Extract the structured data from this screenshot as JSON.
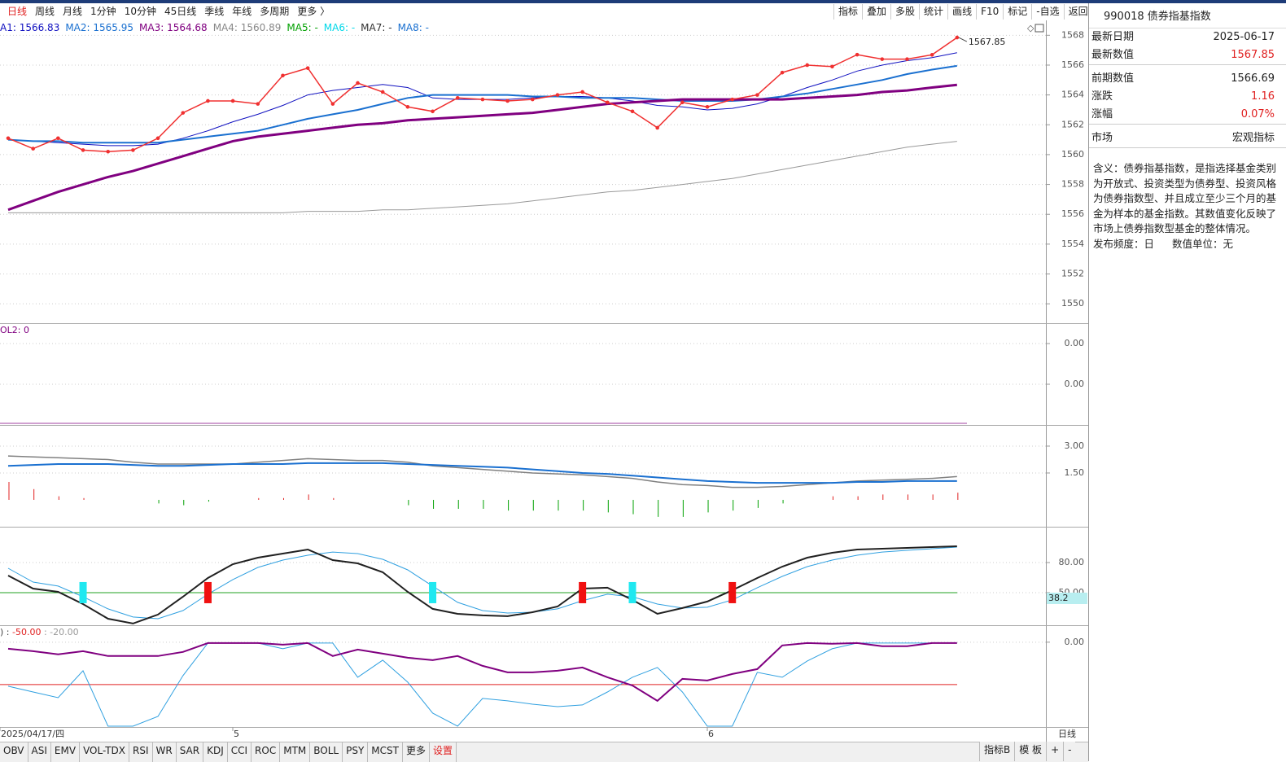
{
  "toolbar": {
    "periods": [
      "日线",
      "周线",
      "月线",
      "1分钟",
      "10分钟",
      "45日线",
      "季线",
      "年线",
      "多周期",
      "更多 〉"
    ],
    "tools": [
      "指标",
      "叠加",
      "多股",
      "统计",
      "画线",
      "F10",
      "标记",
      "-自选",
      "返回"
    ]
  },
  "main": {
    "legend": [
      {
        "text": "A1: 1566.83",
        "color": "#1010c0"
      },
      {
        "text": "MA2: 1565.95",
        "color": "#1a70d0"
      },
      {
        "text": "MA3: 1564.68",
        "color": "#800080"
      },
      {
        "text": "MA4: 1560.89",
        "color": "#888888"
      },
      {
        "text": "MA5: -",
        "color": "#00a000"
      },
      {
        "text": "MA6: -",
        "color": "#00d8e8"
      },
      {
        "text": "MA7: -",
        "color": "#333333"
      },
      {
        "text": "MA8: -",
        "color": "#1a70d0"
      }
    ],
    "ylim": [
      1548.7,
      1569.0
    ],
    "yticks": [
      1550,
      1552,
      1554,
      1556,
      1558,
      1560,
      1562,
      1564,
      1566,
      1568
    ],
    "last_label": "1567.85",
    "close": {
      "color": "#f03030",
      "values": [
        1561.1,
        1560.4,
        1561.1,
        1560.3,
        1560.2,
        1560.3,
        1561.1,
        1562.8,
        1563.6,
        1563.6,
        1563.4,
        1565.3,
        1565.8,
        1563.4,
        1564.8,
        1564.2,
        1563.2,
        1562.9,
        1563.8,
        1563.7,
        1563.6,
        1563.7,
        1564.0,
        1564.2,
        1563.5,
        1562.9,
        1561.8,
        1563.5,
        1563.2,
        1563.7,
        1564.0,
        1565.5,
        1566.0,
        1565.9,
        1566.7,
        1566.4,
        1566.4,
        1566.69,
        1567.85
      ]
    },
    "ma": [
      {
        "color": "#1010c0",
        "width": 1,
        "values": [
          1561.0,
          1560.9,
          1560.8,
          1560.7,
          1560.6,
          1560.6,
          1560.7,
          1561.1,
          1561.6,
          1562.2,
          1562.7,
          1563.3,
          1564.0,
          1564.3,
          1564.5,
          1564.7,
          1564.5,
          1563.8,
          1563.7,
          1563.7,
          1563.7,
          1563.8,
          1563.9,
          1563.9,
          1563.8,
          1563.6,
          1563.3,
          1563.2,
          1563.0,
          1563.1,
          1563.4,
          1563.9,
          1564.5,
          1565.0,
          1565.6,
          1566.0,
          1566.3,
          1566.5,
          1566.83
        ]
      },
      {
        "color": "#1a70d0",
        "width": 2,
        "values": [
          1561.0,
          1560.9,
          1560.9,
          1560.8,
          1560.8,
          1560.8,
          1560.8,
          1561.0,
          1561.2,
          1561.4,
          1561.6,
          1562.0,
          1562.4,
          1562.7,
          1563.0,
          1563.4,
          1563.8,
          1564.0,
          1564.0,
          1564.0,
          1564.0,
          1563.9,
          1563.9,
          1563.8,
          1563.8,
          1563.8,
          1563.7,
          1563.6,
          1563.6,
          1563.6,
          1563.7,
          1563.9,
          1564.1,
          1564.4,
          1564.7,
          1565.0,
          1565.4,
          1565.7,
          1565.95
        ]
      },
      {
        "color": "#800080",
        "width": 3,
        "values": [
          1556.3,
          1556.9,
          1557.5,
          1558.0,
          1558.5,
          1558.9,
          1559.4,
          1559.9,
          1560.4,
          1560.9,
          1561.2,
          1561.4,
          1561.6,
          1561.8,
          1562.0,
          1562.1,
          1562.3,
          1562.4,
          1562.5,
          1562.6,
          1562.7,
          1562.8,
          1563.0,
          1563.2,
          1563.4,
          1563.5,
          1563.6,
          1563.7,
          1563.7,
          1563.7,
          1563.7,
          1563.7,
          1563.8,
          1563.9,
          1564.0,
          1564.2,
          1564.3,
          1564.5,
          1564.68
        ]
      },
      {
        "color": "#999999",
        "width": 1,
        "values": [
          1556.1,
          1556.1,
          1556.1,
          1556.1,
          1556.1,
          1556.1,
          1556.1,
          1556.1,
          1556.1,
          1556.1,
          1556.1,
          1556.1,
          1556.2,
          1556.2,
          1556.2,
          1556.3,
          1556.3,
          1556.4,
          1556.5,
          1556.6,
          1556.7,
          1556.9,
          1557.1,
          1557.3,
          1557.5,
          1557.6,
          1557.8,
          1558.0,
          1558.2,
          1558.4,
          1558.7,
          1559.0,
          1559.3,
          1559.6,
          1559.9,
          1560.2,
          1560.5,
          1560.7,
          1560.89
        ]
      }
    ]
  },
  "vol": {
    "header": "OL2: 0",
    "ylim": [
      0,
      0.005
    ],
    "yticks": [
      {
        "value": 0.004,
        "label": "0.00"
      },
      {
        "value": 0.002,
        "label": "0.00"
      }
    ]
  },
  "macd": {
    "ylim": [
      -1.5,
      4.18
    ],
    "yticks": [
      {
        "value": 3,
        "label": "3.00"
      },
      {
        "value": 1.5,
        "label": "1.50"
      }
    ],
    "up_color": "#e02020",
    "down_color": "#00a000",
    "lines": [
      {
        "color": "#808080",
        "width": 1.5,
        "values": [
          2.45,
          2.4,
          2.35,
          2.3,
          2.25,
          2.1,
          2.0,
          2.0,
          2.0,
          2.0,
          2.1,
          2.2,
          2.3,
          2.25,
          2.2,
          2.2,
          2.1,
          1.9,
          1.8,
          1.7,
          1.6,
          1.5,
          1.45,
          1.4,
          1.3,
          1.2,
          1.0,
          0.85,
          0.8,
          0.7,
          0.7,
          0.75,
          0.85,
          0.95,
          1.05,
          1.1,
          1.15,
          1.2,
          1.3
        ]
      },
      {
        "color": "#1a70d0",
        "width": 2,
        "values": [
          1.9,
          1.95,
          2.0,
          2.0,
          2.0,
          1.95,
          1.9,
          1.9,
          1.95,
          2.0,
          2.0,
          2.0,
          2.05,
          2.05,
          2.05,
          2.05,
          2.0,
          1.95,
          1.9,
          1.85,
          1.8,
          1.7,
          1.6,
          1.5,
          1.45,
          1.35,
          1.25,
          1.15,
          1.05,
          1.0,
          0.95,
          0.95,
          0.95,
          0.95,
          1.0,
          1.0,
          1.05,
          1.05,
          1.05
        ]
      }
    ],
    "hist": [
      1.0,
      0.6,
      0.2,
      0.1,
      0,
      0,
      -0.2,
      -0.3,
      -0.1,
      0,
      0.1,
      0.1,
      0.3,
      0.1,
      0,
      0,
      -0.3,
      -0.5,
      -0.5,
      -0.5,
      -0.6,
      -0.6,
      -0.6,
      -0.6,
      -0.7,
      -0.8,
      -0.95,
      -0.95,
      -0.7,
      -0.6,
      -0.45,
      -0.2,
      0,
      0.2,
      0.2,
      0.3,
      0.3,
      0.3,
      0.4
    ]
  },
  "kdj": {
    "ylim": [
      17.5,
      115.7
    ],
    "yticks": [
      {
        "value": 80,
        "label": "80.00"
      },
      {
        "value": 50,
        "label": "50.00"
      }
    ],
    "ref_line": 50,
    "ref_color": "#20a020",
    "readout": "38.2",
    "lines": [
      {
        "color": "#30a0e0",
        "width": 1,
        "values": [
          74.3,
          60.5,
          56.5,
          45.9,
          33.8,
          25.7,
          24.0,
          32.1,
          48.4,
          63.0,
          75.1,
          82.4,
          87.3,
          90.5,
          88.9,
          83.2,
          72.7,
          56.5,
          40.3,
          32.1,
          29.7,
          30.5,
          33.8,
          41.9,
          48.4,
          45.9,
          38.6,
          34.6,
          35.4,
          42.7,
          54.9,
          66.2,
          75.9,
          82.4,
          87.3,
          90.5,
          92.2,
          93.8,
          95.4
        ]
      },
      {
        "color": "#202020",
        "width": 2,
        "values": [
          67.0,
          54.0,
          50.8,
          38.6,
          24.0,
          19.2,
          28.1,
          45.9,
          64.6,
          78.4,
          84.9,
          88.9,
          93.0,
          82.4,
          79.2,
          70.3,
          50.8,
          33.8,
          28.9,
          27.3,
          26.5,
          30.5,
          36.2,
          54.0,
          54.9,
          42.7,
          28.9,
          34.6,
          41.1,
          52.4,
          64.6,
          75.9,
          84.9,
          89.7,
          93.0,
          93.8,
          94.6,
          95.4,
          96.2
        ]
      }
    ]
  },
  "osc": {
    "header": [
      ") : ",
      "-50.00",
      " : -20.00"
    ],
    "ylim": [
      -100,
      20
    ],
    "yticks": [
      {
        "value": 0,
        "label": "0.00"
      }
    ],
    "ref_line": -50,
    "ref_color": "#e02020",
    "lines": [
      {
        "color": "#30a0e0",
        "width": 1,
        "values": [
          -51.9,
          -58.7,
          -65.4,
          -33.7,
          -99.0,
          -99.0,
          -87.5,
          -39.4,
          -1.0,
          -1.0,
          -1.0,
          -7.7,
          -1.0,
          -1.0,
          -41.3,
          -21.2,
          -47.1,
          -83.7,
          -99.0,
          -66.3,
          -69.2,
          -73.1,
          -76.0,
          -74.0,
          -58.7,
          -41.3,
          -29.8,
          -58.7,
          -99.0,
          -99.0,
          -35.6,
          -41.3,
          -22.1,
          -7.7,
          -1.0,
          -1.0,
          -1.0,
          -1.0,
          -1.0
        ]
      },
      {
        "color": "#800080",
        "width": 2,
        "values": [
          -7.7,
          -10.6,
          -14.4,
          -10.6,
          -16.3,
          -16.3,
          -16.3,
          -11.5,
          -1.0,
          -1.0,
          -1.0,
          -2.9,
          -1.0,
          -16.3,
          -8.7,
          -13.5,
          -18.3,
          -21.2,
          -16.3,
          -27.9,
          -35.6,
          -35.6,
          -33.7,
          -29.8,
          -41.3,
          -51.0,
          -69.2,
          -43.3,
          -45.2,
          -37.5,
          -31.7,
          -3.8,
          -1.0,
          -1.9,
          -1.0,
          -4.8,
          -4.8,
          -1.0,
          -1.0
        ]
      }
    ]
  },
  "x_axis": {
    "labels": [
      "2025/04/17/四",
      "5",
      "6"
    ],
    "period": "日线"
  },
  "tabs": [
    "OBV",
    "ASI",
    "EMV",
    "VOL-TDX",
    "RSI",
    "WR",
    "SAR",
    "KDJ",
    "CCI",
    "ROC",
    "MTM",
    "BOLL",
    "PSY",
    "MCST",
    "更多",
    "设置"
  ],
  "tabs_right": [
    "指标B",
    "模 板",
    "+",
    "-"
  ],
  "info": {
    "title": "990018 债券指基指数",
    "rows": [
      [
        "最新日期",
        "2025-06-17"
      ],
      [
        "最新数值",
        "1567.85"
      ],
      [
        "前期数值",
        "1566.69"
      ],
      [
        "涨跌",
        "1.16"
      ],
      [
        "涨幅",
        "0.07%"
      ],
      [
        "市场",
        "宏观指标"
      ]
    ],
    "description": "含义：债券指基指数，是指选择基金类别为开放式、投资类型为债券型、投资风格为债券指数型、并且成立至少三个月的基金为样本的基金指数。其数值变化反映了市场上债券指数型基金的整体情况。",
    "frequency": "发布频度：日",
    "unit": "数值单位：无"
  }
}
